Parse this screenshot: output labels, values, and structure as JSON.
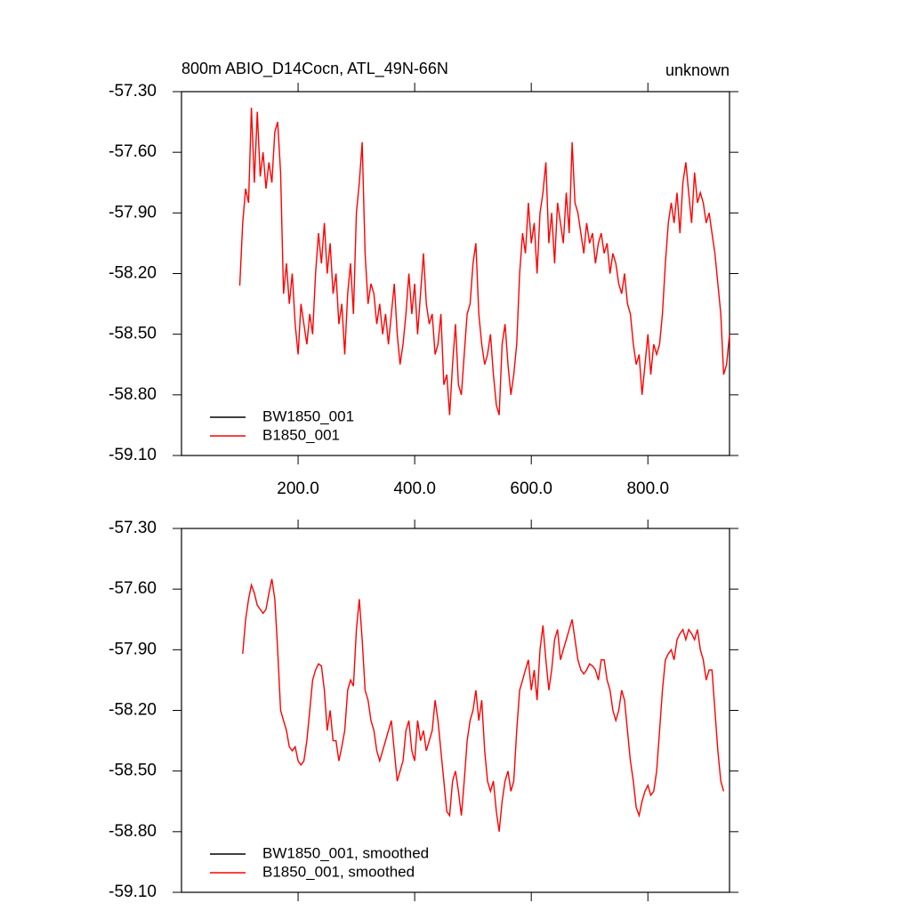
{
  "chart_data": [
    {
      "type": "line",
      "title": "800m ABIO_D14Cocn, ATL_49N-66N",
      "right_title": "unknown",
      "xlim": [
        0,
        940
      ],
      "xticks": [
        {
          "value": 200,
          "label": "200.0"
        },
        {
          "value": 400,
          "label": "400.0"
        },
        {
          "value": 600,
          "label": "600.0"
        },
        {
          "value": 800,
          "label": "800.0"
        }
      ],
      "show_xticklabels": true,
      "ylim": [
        -59.1,
        -57.3
      ],
      "yticks": [
        {
          "value": -59.1,
          "label": "-59.10"
        },
        {
          "value": -58.8,
          "label": "-58.80"
        },
        {
          "value": -58.5,
          "label": "-58.50"
        },
        {
          "value": -58.2,
          "label": "-58.20"
        },
        {
          "value": -57.9,
          "label": "-57.90"
        },
        {
          "value": -57.6,
          "label": "-57.60"
        },
        {
          "value": -57.3,
          "label": "-57.30"
        }
      ],
      "legend": "lower left",
      "x": [
        100,
        105,
        110,
        115,
        120,
        125,
        130,
        135,
        140,
        145,
        150,
        155,
        160,
        165,
        170,
        175,
        180,
        185,
        190,
        195,
        200,
        205,
        210,
        215,
        220,
        225,
        230,
        235,
        240,
        245,
        250,
        255,
        260,
        265,
        270,
        275,
        280,
        285,
        290,
        295,
        300,
        305,
        310,
        315,
        320,
        325,
        330,
        335,
        340,
        345,
        350,
        355,
        360,
        365,
        370,
        375,
        380,
        385,
        390,
        395,
        400,
        405,
        410,
        415,
        420,
        425,
        430,
        435,
        440,
        445,
        450,
        455,
        460,
        465,
        470,
        475,
        480,
        485,
        490,
        495,
        500,
        505,
        510,
        515,
        520,
        525,
        530,
        535,
        540,
        545,
        550,
        555,
        560,
        565,
        570,
        575,
        580,
        585,
        590,
        595,
        600,
        605,
        610,
        615,
        620,
        625,
        630,
        635,
        640,
        645,
        650,
        655,
        660,
        665,
        670,
        675,
        680,
        685,
        690,
        695,
        700,
        705,
        710,
        715,
        720,
        725,
        730,
        735,
        740,
        745,
        750,
        755,
        760,
        765,
        770,
        775,
        780,
        785,
        790,
        795,
        800,
        805,
        810,
        815,
        820,
        825,
        830,
        835,
        840,
        845,
        850,
        855,
        860,
        865,
        870,
        875,
        880,
        885,
        890,
        895,
        900,
        905,
        910,
        915,
        920,
        925,
        930,
        935,
        940
      ],
      "series": [
        {
          "name": "BW1850_001",
          "color": "#000000"
        },
        {
          "name": "B1850_001",
          "color": "#ff0000",
          "values": [
            -58.26,
            -57.95,
            -57.78,
            -57.85,
            -57.38,
            -57.75,
            -57.4,
            -57.72,
            -57.6,
            -57.78,
            -57.65,
            -57.75,
            -57.5,
            -57.45,
            -57.7,
            -58.3,
            -58.15,
            -58.35,
            -58.2,
            -58.45,
            -58.6,
            -58.35,
            -58.45,
            -58.55,
            -58.4,
            -58.5,
            -58.2,
            -58.0,
            -58.15,
            -57.95,
            -58.2,
            -58.05,
            -58.3,
            -58.2,
            -58.45,
            -58.35,
            -58.6,
            -58.3,
            -58.15,
            -58.4,
            -57.9,
            -57.75,
            -57.55,
            -58.1,
            -58.35,
            -58.25,
            -58.3,
            -58.45,
            -58.35,
            -58.5,
            -58.4,
            -58.55,
            -58.4,
            -58.25,
            -58.5,
            -58.65,
            -58.55,
            -58.4,
            -58.2,
            -58.4,
            -58.25,
            -58.5,
            -58.3,
            -58.1,
            -58.35,
            -58.45,
            -58.4,
            -58.6,
            -58.55,
            -58.4,
            -58.75,
            -58.7,
            -58.9,
            -58.65,
            -58.45,
            -58.75,
            -58.8,
            -58.6,
            -58.4,
            -58.35,
            -58.15,
            -58.05,
            -58.4,
            -58.55,
            -58.65,
            -58.6,
            -58.5,
            -58.7,
            -58.85,
            -58.9,
            -58.55,
            -58.45,
            -58.65,
            -58.8,
            -58.7,
            -58.55,
            -58.2,
            -58.0,
            -58.1,
            -57.85,
            -58.05,
            -57.95,
            -58.2,
            -57.9,
            -57.8,
            -57.65,
            -58.05,
            -57.9,
            -58.15,
            -57.85,
            -57.95,
            -58.05,
            -57.8,
            -58.0,
            -57.55,
            -57.85,
            -57.9,
            -58.0,
            -58.1,
            -57.95,
            -58.05,
            -58.0,
            -58.15,
            -58.05,
            -58.0,
            -58.1,
            -58.05,
            -58.2,
            -58.1,
            -58.15,
            -58.25,
            -58.3,
            -58.2,
            -58.35,
            -58.4,
            -58.55,
            -58.65,
            -58.6,
            -58.8,
            -58.65,
            -58.5,
            -58.7,
            -58.55,
            -58.6,
            -58.55,
            -58.4,
            -58.15,
            -57.95,
            -57.85,
            -57.95,
            -57.8,
            -58.0,
            -57.75,
            -57.65,
            -57.8,
            -57.95,
            -57.7,
            -57.85,
            -57.8,
            -57.85,
            -57.95,
            -57.9,
            -58.0,
            -58.1,
            -58.25,
            -58.4,
            -58.7,
            -58.65,
            -58.5
          ]
        }
      ]
    },
    {
      "type": "line",
      "xlim": [
        0,
        940
      ],
      "xticks": [
        200,
        400,
        600,
        800
      ],
      "show_xticklabels": false,
      "ylim": [
        -59.1,
        -57.3
      ],
      "yticks": [
        {
          "value": -59.1,
          "label": "-59.10"
        },
        {
          "value": -58.8,
          "label": "-58.80"
        },
        {
          "value": -58.5,
          "label": "-58.50"
        },
        {
          "value": -58.2,
          "label": "-58.20"
        },
        {
          "value": -57.9,
          "label": "-57.90"
        },
        {
          "value": -57.6,
          "label": "-57.60"
        },
        {
          "value": -57.3,
          "label": "-57.30"
        }
      ],
      "legend": "lower left",
      "x": [
        105,
        110,
        115,
        120,
        125,
        130,
        135,
        140,
        145,
        150,
        155,
        160,
        165,
        170,
        175,
        180,
        185,
        190,
        195,
        200,
        205,
        210,
        215,
        220,
        225,
        230,
        235,
        240,
        245,
        250,
        255,
        260,
        265,
        270,
        275,
        280,
        285,
        290,
        295,
        300,
        305,
        310,
        315,
        320,
        325,
        330,
        335,
        340,
        345,
        350,
        355,
        360,
        365,
        370,
        375,
        380,
        385,
        390,
        395,
        400,
        405,
        410,
        415,
        420,
        425,
        430,
        435,
        440,
        445,
        450,
        455,
        460,
        465,
        470,
        475,
        480,
        485,
        490,
        495,
        500,
        505,
        510,
        515,
        520,
        525,
        530,
        535,
        540,
        545,
        550,
        555,
        560,
        565,
        570,
        575,
        580,
        585,
        590,
        595,
        600,
        605,
        610,
        615,
        620,
        625,
        630,
        635,
        640,
        645,
        650,
        655,
        660,
        665,
        670,
        675,
        680,
        685,
        690,
        695,
        700,
        705,
        710,
        715,
        720,
        725,
        730,
        735,
        740,
        745,
        750,
        755,
        760,
        765,
        770,
        775,
        780,
        785,
        790,
        795,
        800,
        805,
        810,
        815,
        820,
        825,
        830,
        835,
        840,
        845,
        850,
        855,
        860,
        865,
        870,
        875,
        880,
        885,
        890,
        895,
        900,
        905,
        910,
        915,
        920,
        925,
        930
      ],
      "series": [
        {
          "name": "BW1850_001, smoothed",
          "color": "#000000"
        },
        {
          "name": "B1850_001, smoothed",
          "color": "#ff0000",
          "values": [
            -57.92,
            -57.75,
            -57.65,
            -57.58,
            -57.62,
            -57.68,
            -57.7,
            -57.72,
            -57.7,
            -57.62,
            -57.55,
            -57.65,
            -57.9,
            -58.2,
            -58.25,
            -58.3,
            -58.38,
            -58.4,
            -58.38,
            -58.45,
            -58.47,
            -58.45,
            -58.35,
            -58.2,
            -58.05,
            -58.0,
            -57.97,
            -57.98,
            -58.1,
            -58.3,
            -58.2,
            -58.35,
            -58.35,
            -58.45,
            -58.38,
            -58.3,
            -58.1,
            -58.05,
            -58.08,
            -57.8,
            -57.65,
            -57.85,
            -58.1,
            -58.15,
            -58.25,
            -58.3,
            -58.4,
            -58.45,
            -58.4,
            -58.35,
            -58.3,
            -58.25,
            -58.4,
            -58.55,
            -58.5,
            -58.45,
            -58.3,
            -58.25,
            -58.4,
            -58.45,
            -58.25,
            -58.35,
            -58.3,
            -58.4,
            -58.35,
            -58.3,
            -58.15,
            -58.25,
            -58.4,
            -58.55,
            -58.7,
            -58.72,
            -58.55,
            -58.5,
            -58.6,
            -58.72,
            -58.55,
            -58.35,
            -58.25,
            -58.2,
            -58.1,
            -58.25,
            -58.15,
            -58.4,
            -58.55,
            -58.6,
            -58.55,
            -58.7,
            -58.8,
            -58.65,
            -58.55,
            -58.5,
            -58.6,
            -58.55,
            -58.3,
            -58.1,
            -58.05,
            -58.0,
            -57.95,
            -58.1,
            -58.0,
            -58.15,
            -57.9,
            -57.78,
            -57.95,
            -58.1,
            -58.0,
            -57.85,
            -57.8,
            -57.95,
            -57.9,
            -57.85,
            -57.8,
            -57.75,
            -57.85,
            -57.95,
            -58.0,
            -58.02,
            -58.0,
            -57.97,
            -57.98,
            -58.0,
            -58.05,
            -57.95,
            -57.95,
            -58.05,
            -58.1,
            -58.2,
            -58.25,
            -58.2,
            -58.1,
            -58.15,
            -58.3,
            -58.45,
            -58.55,
            -58.68,
            -58.72,
            -58.65,
            -58.6,
            -58.57,
            -58.62,
            -58.6,
            -58.5,
            -58.3,
            -58.1,
            -57.95,
            -57.92,
            -57.9,
            -57.95,
            -57.85,
            -57.82,
            -57.8,
            -57.85,
            -57.8,
            -57.82,
            -57.85,
            -57.8,
            -57.9,
            -57.95,
            -58.05,
            -58.0,
            -58.0,
            -58.2,
            -58.4,
            -58.55,
            -58.6
          ]
        }
      ]
    }
  ]
}
